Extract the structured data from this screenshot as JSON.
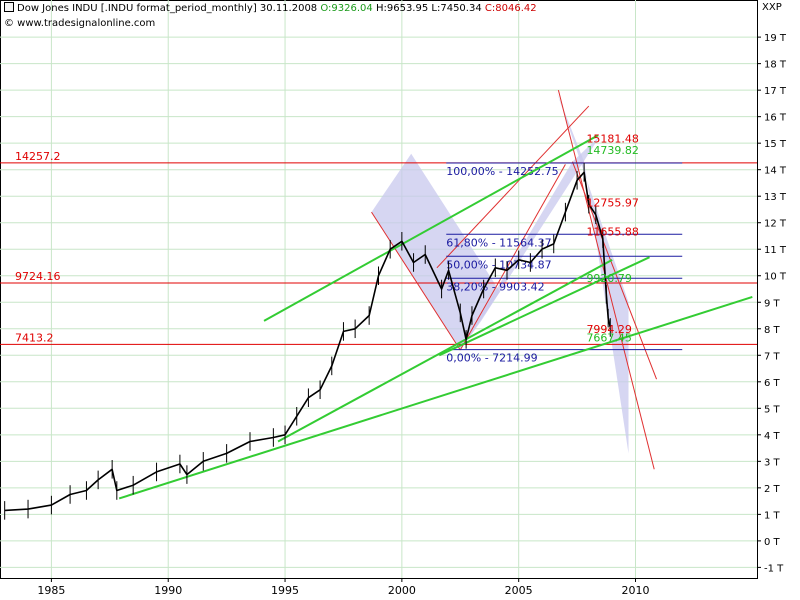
{
  "header": {
    "title": "Dow Jones INDU [.INDU format_period_monthly] 30.11.2008",
    "open": "O:9326.04",
    "high": "H:9653.95",
    "low": "L:7450.34",
    "close": "C:8046.42",
    "copyright": "© www.tradesignalonline.com",
    "scale_unit": "XXP"
  },
  "chart_data": {
    "type": "line",
    "x_ticks": [
      "1985",
      "1990",
      "1995",
      "2000",
      "2005",
      "2010"
    ],
    "y_ticks": [
      "19 T",
      "18 T",
      "17 T",
      "16 T",
      "15 T",
      "14 T",
      "13 T",
      "12 T",
      "11 T",
      "10 T",
      "9 T",
      "8 T",
      "7 T",
      "6 T",
      "5 T",
      "4 T",
      "3 T",
      "2 T",
      "1 T",
      "0 T",
      "-1 T"
    ],
    "y_tick_values": [
      19,
      18,
      17,
      16,
      15,
      14,
      13,
      12,
      11,
      10,
      9,
      8,
      7,
      6,
      5,
      4,
      3,
      2,
      1,
      0,
      -1
    ],
    "xlim": [
      1982.8,
      2015.2
    ],
    "ylim": [
      -1.4,
      20.4
    ],
    "grid": true,
    "price_series": {
      "name": "Dow Jones INDU",
      "x": [
        1983.0,
        1984.0,
        1985.0,
        1985.8,
        1986.5,
        1987.0,
        1987.6,
        1987.8,
        1988.5,
        1989.5,
        1990.5,
        1990.8,
        1991.5,
        1992.5,
        1993.5,
        1994.5,
        1995.0,
        1995.5,
        1996.0,
        1996.5,
        1997.0,
        1997.5,
        1998.0,
        1998.6,
        1999.0,
        1999.5,
        2000.0,
        2000.5,
        2001.0,
        2001.7,
        2002.0,
        2002.5,
        2002.75,
        2003.0,
        2003.5,
        2004.0,
        2004.5,
        2005.0,
        2005.5,
        2006.0,
        2006.5,
        2007.0,
        2007.5,
        2007.8,
        2008.0,
        2008.3,
        2008.6,
        2008.75,
        2008.83,
        2008.92
      ],
      "values": [
        1.15,
        1.2,
        1.35,
        1.75,
        1.9,
        2.3,
        2.7,
        1.9,
        2.1,
        2.6,
        2.9,
        2.5,
        3.0,
        3.3,
        3.75,
        3.9,
        4.0,
        4.7,
        5.4,
        5.7,
        6.6,
        7.9,
        8.0,
        8.5,
        10.0,
        11.0,
        11.3,
        10.5,
        10.8,
        9.5,
        10.2,
        8.6,
        7.6,
        8.5,
        9.5,
        10.3,
        10.2,
        10.6,
        10.5,
        11.0,
        11.2,
        12.4,
        13.6,
        13.9,
        12.7,
        12.3,
        11.4,
        9.3,
        8.4,
        8.05
      ],
      "color": "#000000"
    },
    "horizontal_levels": [
      {
        "label": "14257.2",
        "value": 14.2572,
        "color": "#e00000"
      },
      {
        "label": "9724.16",
        "value": 9.72416,
        "color": "#e00000"
      },
      {
        "label": "7413.2",
        "value": 7.4132,
        "color": "#e00000"
      }
    ],
    "fibonacci": {
      "color": "#1a1aa0",
      "x_start": 2001.9,
      "x_end": 2012.0,
      "levels": [
        {
          "label": "100,00% - 14252.75",
          "value": 14.25275
        },
        {
          "label": "61,80% - 11564.37",
          "value": 11.56437
        },
        {
          "label": "50,00% - 10734.87",
          "value": 10.73487
        },
        {
          "label": "38,20% - 9903.42",
          "value": 9.90342
        },
        {
          "label": "0,00% - 7214.99",
          "value": 7.21499
        }
      ]
    },
    "annotations_red": [
      {
        "text": "15181.48",
        "x": 2007.9,
        "y": 15.18
      },
      {
        "text": "12755.97",
        "x": 2007.9,
        "y": 12.76
      },
      {
        "text": "11655.88",
        "x": 2007.9,
        "y": 11.66
      },
      {
        "text": "7994.29",
        "x": 2007.9,
        "y": 7.99
      }
    ],
    "annotations_green": [
      {
        "text": "14739.82",
        "x": 2007.9,
        "y": 14.74
      },
      {
        "text": "9920.79",
        "x": 2007.9,
        "y": 9.92
      },
      {
        "text": "7667.45",
        "x": 2007.9,
        "y": 7.67
      }
    ],
    "green_trendlines": [
      {
        "x1": 1987.9,
        "y1": 1.6,
        "x2": 2015.0,
        "y2": 9.2
      },
      {
        "x1": 1994.7,
        "y1": 3.75,
        "x2": 2009.0,
        "y2": 10.6
      },
      {
        "x1": 1994.1,
        "y1": 8.3,
        "x2": 2008.4,
        "y2": 15.3
      },
      {
        "x1": 2001.6,
        "y1": 7.0,
        "x2": 2010.6,
        "y2": 10.7
      }
    ],
    "red_channels": [
      {
        "x1": 1998.7,
        "y1": 12.4,
        "x2": 2002.5,
        "y2": 7.2
      },
      {
        "x1": 2002.5,
        "y1": 7.2,
        "x2": 2007.0,
        "y2": 14.2
      },
      {
        "x1": 2001.5,
        "y1": 10.3,
        "x2": 2008.0,
        "y2": 16.4
      },
      {
        "x1": 2006.7,
        "y1": 17.0,
        "x2": 2010.8,
        "y2": 2.7
      },
      {
        "x1": 2007.3,
        "y1": 14.3,
        "x2": 2010.9,
        "y2": 6.1
      }
    ],
    "shaded_regions": [
      {
        "points": [
          [
            1998.7,
            12.4
          ],
          [
            2002.5,
            7.2
          ],
          [
            2004.2,
            9.4
          ],
          [
            2000.4,
            14.6
          ]
        ],
        "color": "#c8c8ee"
      },
      {
        "points": [
          [
            2002.5,
            7.2
          ],
          [
            2007.3,
            14.3
          ],
          [
            2008.5,
            15.3
          ],
          [
            2003.4,
            8.3
          ]
        ],
        "color": "#c8c8ee"
      },
      {
        "points": [
          [
            2006.6,
            17.0
          ],
          [
            2007.8,
            14.3
          ],
          [
            2009.7,
            3.3
          ],
          [
            2009.7,
            9.0
          ]
        ],
        "color": "#c8c8ee"
      }
    ]
  }
}
